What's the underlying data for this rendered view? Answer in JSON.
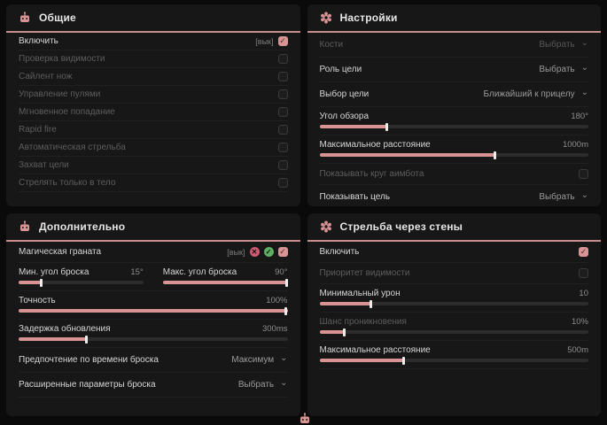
{
  "accent": "#d89494",
  "panels": [
    {
      "title": "Общие",
      "icon": "robot-icon",
      "rows": [
        {
          "type": "toggle",
          "label": "Включить",
          "enabled": true,
          "checked": true,
          "tag": "[вык]"
        },
        {
          "type": "toggle",
          "label": "Проверка видимости",
          "enabled": false,
          "checked": false
        },
        {
          "type": "toggle",
          "label": "Сайлент нож",
          "enabled": false,
          "checked": false
        },
        {
          "type": "toggle",
          "label": "Управление пулями",
          "enabled": false,
          "checked": false
        },
        {
          "type": "toggle",
          "label": "Мгновенное попадание",
          "enabled": false,
          "checked": false
        },
        {
          "type": "toggle",
          "label": "Rapid fire",
          "enabled": false,
          "checked": false
        },
        {
          "type": "toggle",
          "label": "Автоматическая стрельба",
          "enabled": false,
          "checked": false
        },
        {
          "type": "toggle",
          "label": "Захват цели",
          "enabled": false,
          "checked": false
        },
        {
          "type": "toggle",
          "label": "Стрелять только в тело",
          "enabled": false,
          "checked": false
        }
      ]
    },
    {
      "title": "Настройки",
      "icon": "gear-icon",
      "rows": [
        {
          "type": "dropdown",
          "label": "Кости",
          "value": "Выбрать",
          "enabled": false
        },
        {
          "type": "dropdown",
          "label": "Роль цели",
          "value": "Выбрать",
          "enabled": true
        },
        {
          "type": "dropdown",
          "label": "Выбор цели",
          "value": "Ближайший к прицелу",
          "enabled": true
        },
        {
          "type": "slider",
          "label": "Угол обзора",
          "value": "180°",
          "fill": 25,
          "enabled": true
        },
        {
          "type": "slider",
          "label": "Максимальное расстояние",
          "value": "1000m",
          "fill": 65,
          "enabled": true
        },
        {
          "type": "toggle",
          "label": "Показывать круг аимбота",
          "enabled": false,
          "checked": false,
          "tall": true
        },
        {
          "type": "dropdown",
          "label": "Показывать цель",
          "value": "Выбрать",
          "enabled": true
        }
      ]
    },
    {
      "title": "Дополнительно",
      "icon": "robot-icon",
      "rows": [
        {
          "type": "toggle",
          "label": "Магическая граната",
          "enabled": true,
          "checked": true,
          "tag": "[вык]",
          "tall": true,
          "badges": [
            {
              "name": "broken-heart-icon",
              "glyph": "✕",
              "color": "#cf5a72"
            },
            {
              "name": "check-heart-icon",
              "glyph": "✓",
              "color": "#5fae63"
            }
          ]
        },
        {
          "type": "dual_slider",
          "sliders": [
            {
              "label": "Мин. угол броска",
              "value": "15°",
              "fill": 18
            },
            {
              "label": "Макс. угол броска",
              "value": "90°",
              "fill": 100
            }
          ]
        },
        {
          "type": "slider",
          "label": "Точность",
          "value": "100%",
          "fill": 100,
          "enabled": true
        },
        {
          "type": "slider",
          "label": "Задержка обновления",
          "value": "300ms",
          "fill": 25,
          "enabled": true
        },
        {
          "type": "dropdown",
          "label": "Предпочтение по времени броска",
          "value": "Максимум",
          "enabled": true
        },
        {
          "type": "dropdown",
          "label": "Расширенные параметры броска",
          "value": "Выбрать",
          "enabled": true
        }
      ]
    },
    {
      "title": "Стрельба через стены",
      "icon": "gear-icon",
      "rows": [
        {
          "type": "toggle",
          "label": "Включить",
          "enabled": true,
          "checked": true,
          "tall": true
        },
        {
          "type": "toggle",
          "label": "Приоритет видимости",
          "enabled": false,
          "checked": false,
          "tall": true
        },
        {
          "type": "slider",
          "label": "Минимальный урон",
          "value": "10",
          "fill": 19,
          "enabled": true
        },
        {
          "type": "slider",
          "label": "Шанс проникновения",
          "value": "10%",
          "fill": 9,
          "enabled": false
        },
        {
          "type": "slider",
          "label": "Максимальное расстояние",
          "value": "500m",
          "fill": 31,
          "enabled": true
        }
      ]
    }
  ],
  "footer": {
    "icon": "robot-icon"
  }
}
